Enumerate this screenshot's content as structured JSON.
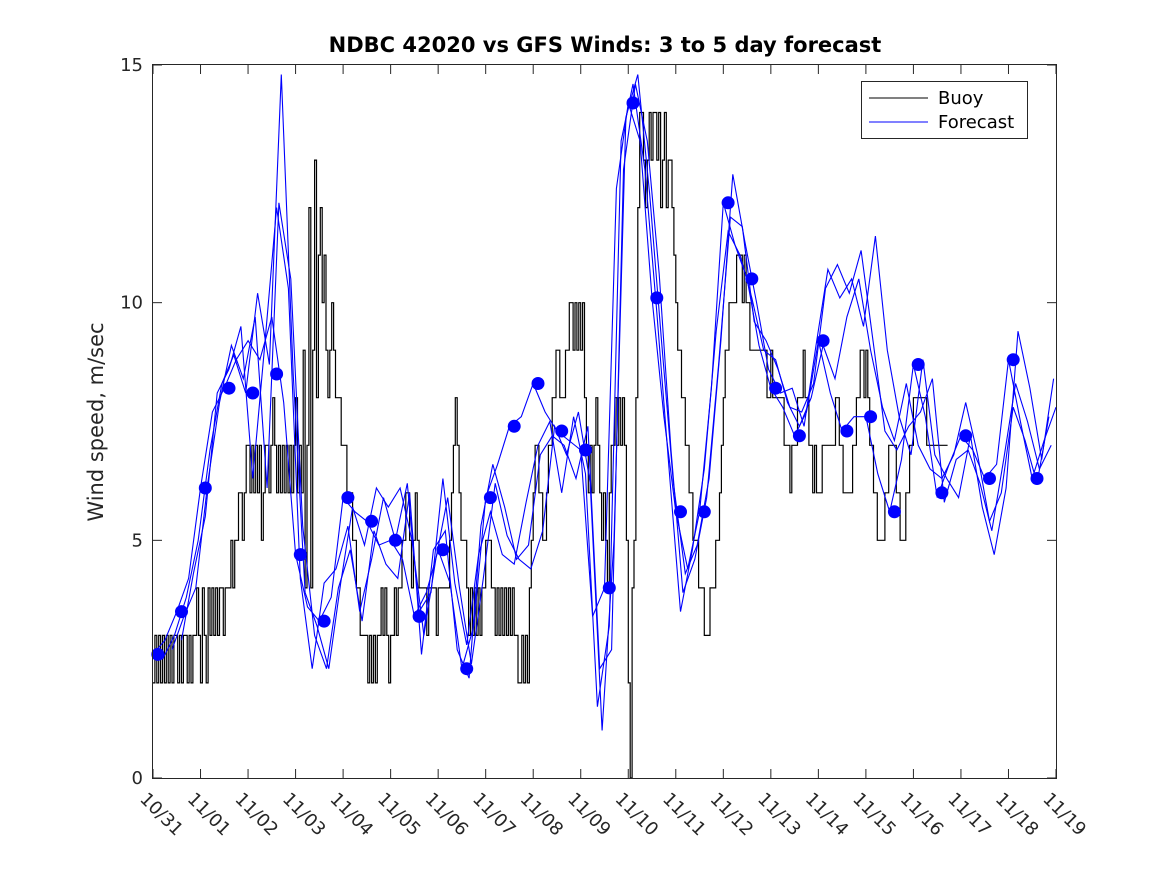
{
  "chart_data": {
    "type": "line",
    "title": "NDBC 42020 vs GFS Winds: 3 to 5 day forecast",
    "xlabel": "",
    "ylabel": "Wind speed, m/sec",
    "xlim": [
      0,
      19
    ],
    "ylim": [
      0,
      15
    ],
    "grid": false,
    "legend_position": "top-right",
    "x_tick_labels": [
      "10/31",
      "11/01",
      "11/02",
      "11/03",
      "11/04",
      "11/05",
      "11/06",
      "11/07",
      "11/08",
      "11/09",
      "11/10",
      "11/11",
      "11/12",
      "11/13",
      "11/14",
      "11/15",
      "11/16",
      "11/17",
      "11/18",
      "11/19"
    ],
    "y_ticks": [
      0,
      5,
      10,
      15
    ],
    "colors": {
      "buoy": "#000000",
      "forecast": "#0000ff",
      "markers": "#0000ff"
    },
    "series": [
      {
        "name": "Buoy",
        "x_start": 0,
        "x_step": 0.04,
        "values": [
          2,
          3,
          2,
          3,
          2,
          3,
          2,
          3,
          2,
          3,
          2,
          3,
          3,
          2,
          3,
          2,
          3,
          3,
          2,
          3,
          2,
          3,
          3,
          4,
          3,
          2,
          4,
          3,
          2,
          4,
          3,
          4,
          3,
          4,
          3,
          4,
          4,
          3,
          4,
          4,
          4,
          5,
          4,
          5,
          5,
          6,
          6,
          5,
          6,
          7,
          7,
          6,
          7,
          6,
          7,
          6,
          7,
          5,
          6,
          7,
          7,
          6,
          7,
          8,
          7,
          6,
          7,
          6,
          7,
          6,
          7,
          6,
          7,
          6,
          7,
          8,
          6,
          7,
          6,
          9,
          4,
          7,
          12,
          4,
          9,
          13,
          8,
          11,
          12,
          10,
          11,
          9,
          8,
          9,
          10,
          9,
          8,
          8,
          8,
          7,
          7,
          7,
          6,
          6,
          6,
          5,
          5,
          4,
          4,
          3,
          3,
          3,
          3,
          2,
          3,
          2,
          3,
          2,
          3,
          3,
          4,
          3,
          4,
          3,
          2,
          3,
          3,
          4,
          3,
          4,
          4,
          5,
          5,
          6,
          6,
          5,
          4,
          5,
          6,
          5,
          4,
          4,
          4,
          4,
          3,
          4,
          4,
          4,
          4,
          3,
          4,
          4,
          4,
          4,
          4,
          4,
          5,
          6,
          7,
          8,
          7,
          6,
          5,
          5,
          5,
          4,
          3,
          4,
          3,
          4,
          3,
          4,
          3,
          4,
          4,
          5,
          5,
          5,
          4,
          4,
          3,
          4,
          3,
          4,
          3,
          4,
          3,
          4,
          3,
          4,
          3,
          3,
          2,
          2,
          3,
          2,
          3,
          2,
          4,
          5,
          6,
          7,
          7,
          6,
          6,
          5,
          5,
          6,
          7,
          7,
          8,
          8,
          9,
          9,
          8,
          8,
          8,
          9,
          9,
          10,
          10,
          9,
          10,
          9,
          10,
          9,
          10,
          8,
          7,
          6,
          7,
          6,
          7,
          8,
          7,
          6,
          5,
          6,
          5,
          4,
          6,
          7,
          7,
          8,
          7,
          8,
          7,
          8,
          7,
          5,
          2,
          0,
          4,
          5,
          8,
          12,
          14,
          14,
          13,
          12,
          13,
          14,
          13,
          14,
          14,
          13,
          14,
          12,
          13,
          14,
          12,
          13,
          13,
          12,
          11,
          10,
          9,
          9,
          8,
          8,
          7,
          7,
          6,
          6,
          5,
          5,
          5,
          4,
          4,
          4,
          3,
          3,
          3,
          4,
          4,
          4,
          5,
          5,
          6,
          7,
          8,
          9,
          9,
          10,
          10,
          10,
          10,
          11,
          11,
          11,
          10,
          11,
          10,
          10,
          9,
          9,
          9,
          9,
          9,
          9,
          9,
          9,
          9,
          8,
          8,
          9,
          8,
          8,
          8,
          8,
          8,
          8,
          7,
          7,
          7,
          6,
          7,
          7,
          7,
          8,
          8,
          8,
          9,
          8,
          8,
          7,
          7,
          6,
          7,
          6,
          6,
          6,
          7,
          7,
          7,
          7,
          7,
          7,
          7,
          8,
          8,
          7,
          7,
          6,
          6,
          6,
          6,
          6,
          7,
          7,
          8,
          8,
          9,
          9,
          8,
          9,
          8,
          7,
          7,
          6,
          6,
          5,
          5,
          5,
          5,
          6,
          6,
          7,
          7,
          7,
          7,
          6,
          6,
          5,
          5,
          5,
          6,
          6,
          7,
          7,
          8,
          8,
          8,
          8,
          8,
          8,
          8,
          7,
          7,
          7,
          7,
          7,
          7,
          7,
          7,
          7,
          7,
          7
        ]
      },
      {
        "name": "Forecast",
        "runs": [
          {
            "x": [
              0.0,
              0.25,
              0.5,
              0.75,
              1.0,
              1.25,
              1.5,
              1.75,
              2.0,
              2.25,
              2.5,
              2.75,
              3.0,
              3.25,
              3.5,
              3.75,
              4.0,
              4.25,
              4.5,
              4.75,
              5.0,
              5.25,
              5.5,
              5.75,
              6.0,
              6.25,
              6.5,
              6.75,
              7.0,
              7.25,
              7.5,
              7.75,
              8.0,
              8.25,
              8.5,
              8.75,
              9.0,
              9.25,
              9.5,
              9.75,
              10.0,
              10.25,
              10.5,
              10.75,
              11.0,
              11.25,
              11.5,
              11.75,
              12.0,
              12.25,
              12.5,
              12.75,
              13.0,
              13.25,
              13.5,
              13.75,
              14.0,
              14.25,
              14.5,
              14.75,
              15.0,
              15.25,
              15.5,
              15.75,
              16.0,
              16.25,
              16.5,
              16.75,
              17.0,
              17.25,
              17.5,
              17.75,
              18.0,
              18.25,
              18.5,
              18.75,
              19.0
            ],
            "y": [
              2.6,
              2.9,
              3.5,
              4.2,
              6.1,
              7.7,
              8.2,
              8.8,
              9.2,
              8.8,
              9.7,
              7.9,
              4.7,
              3.6,
              3.3,
              3.8,
              5.9,
              5.6,
              5.4,
              4.9,
              5.0,
              4.6,
              3.4,
              3.9,
              4.8,
              4.1,
              2.3,
              3.2,
              5.9,
              6.6,
              7.4,
              7.6,
              8.3,
              7.7,
              7.3,
              7.1,
              6.9,
              3.4,
              4.0,
              12.4,
              14.2,
              13.4,
              10.1,
              7.6,
              5.6,
              4.4,
              5.6,
              8.2,
              12.1,
              11.2,
              10.5,
              9.1,
              8.2,
              7.8,
              7.2,
              7.7,
              9.2,
              8.1,
              7.3,
              7.6,
              7.6,
              6.4,
              5.6,
              6.7,
              8.7,
              7.6,
              5.9,
              6.6,
              7.2,
              6.9,
              6.3,
              6.6,
              8.8,
              7.5,
              6.3,
              7.1,
              7.8
            ]
          },
          {
            "x": [
              0.2,
              0.45,
              0.7,
              0.95,
              1.2,
              1.45,
              1.7,
              1.95,
              2.2,
              2.45,
              2.7,
              2.95,
              3.2,
              3.45,
              3.7,
              3.95,
              4.2,
              4.45,
              4.7,
              4.95,
              5.2,
              5.45,
              5.7,
              5.95,
              6.2,
              6.45,
              6.7,
              6.95,
              7.2,
              7.45,
              7.7,
              7.95,
              8.2,
              8.45,
              8.7,
              8.95,
              9.2,
              9.45,
              9.7,
              9.95,
              10.2,
              10.45,
              10.7,
              10.95,
              11.2,
              11.45,
              11.7,
              11.95,
              12.2,
              12.45,
              12.7,
              12.95,
              13.2,
              13.45,
              13.7,
              13.95,
              14.2,
              14.45,
              14.7,
              14.95,
              15.2,
              15.45,
              15.7,
              15.95,
              16.2,
              16.45,
              16.7,
              16.95,
              17.2,
              17.45,
              17.7,
              17.95,
              18.2,
              18.45,
              18.7,
              18.95
            ],
            "y": [
              2.5,
              3.0,
              3.8,
              5.0,
              6.9,
              8.3,
              8.9,
              8.1,
              10.2,
              8.7,
              14.8,
              8.5,
              3.9,
              3.2,
              2.3,
              4.1,
              5.7,
              4.9,
              6.1,
              5.7,
              6.1,
              5.0,
              3.0,
              4.6,
              5.9,
              4.0,
              2.4,
              4.2,
              6.2,
              5.1,
              4.6,
              4.4,
              5.2,
              7.4,
              6.8,
              7.7,
              6.2,
              1.0,
              5.0,
              13.9,
              14.8,
              12.3,
              9.2,
              6.2,
              4.3,
              4.9,
              6.3,
              9.2,
              12.7,
              11.3,
              10.0,
              8.6,
              8.1,
              8.2,
              7.4,
              9.1,
              10.7,
              10.1,
              10.5,
              9.5,
              11.4,
              9.0,
              7.6,
              6.8,
              8.8,
              6.8,
              6.3,
              5.9,
              7.2,
              5.7,
              4.7,
              6.1,
              9.4,
              8.2,
              6.7,
              8.4
            ]
          },
          {
            "x": [
              0.4,
              0.65,
              0.9,
              1.15,
              1.4,
              1.65,
              1.9,
              2.15,
              2.4,
              2.65,
              2.9,
              3.15,
              3.4,
              3.65,
              3.9,
              4.15,
              4.4,
              4.65,
              4.9,
              5.15,
              5.4,
              5.65,
              5.9,
              6.15,
              6.4,
              6.65,
              6.9,
              7.15,
              7.4,
              7.65,
              7.9,
              8.15,
              8.4,
              8.65,
              8.9,
              9.15,
              9.4,
              9.65,
              9.9,
              10.15,
              10.4,
              10.65,
              10.9,
              11.15,
              11.4,
              11.65,
              11.9,
              12.15,
              12.4,
              12.65,
              12.9,
              13.15,
              13.4,
              13.65,
              13.9,
              14.15,
              14.4,
              14.65,
              14.9,
              15.15,
              15.4,
              15.65,
              15.9,
              16.15,
              16.4,
              16.65,
              16.9,
              17.15,
              17.4,
              17.65,
              17.9,
              18.15,
              18.4,
              18.65,
              18.9
            ],
            "y": [
              2.7,
              3.4,
              4.0,
              6.2,
              7.9,
              9.1,
              8.4,
              9.7,
              6.1,
              12.1,
              10.5,
              5.3,
              3.0,
              2.3,
              4.0,
              4.8,
              3.3,
              5.2,
              4.5,
              4.2,
              6.0,
              2.6,
              4.8,
              5.2,
              2.7,
              2.1,
              5.3,
              6.6,
              5.7,
              4.6,
              4.9,
              6.8,
              7.2,
              7.0,
              6.3,
              7.4,
              2.3,
              2.7,
              12.8,
              14.6,
              13.4,
              10.6,
              6.9,
              3.9,
              4.6,
              5.9,
              8.7,
              11.8,
              11.6,
              9.6,
              9.2,
              8.6,
              7.8,
              7.7,
              8.3,
              10.3,
              10.8,
              10.2,
              11.1,
              9.2,
              7.3,
              6.9,
              7.4,
              7.7,
              8.4,
              5.8,
              6.7,
              6.9,
              6.2,
              5.2,
              6.7,
              8.3,
              7.5,
              6.5,
              7.0
            ]
          },
          {
            "x": [
              0.6,
              0.85,
              1.1,
              1.35,
              1.6,
              1.85,
              2.1,
              2.35,
              2.6,
              2.85,
              3.1,
              3.35,
              3.6,
              3.85,
              4.1,
              4.35,
              4.6,
              4.85,
              5.1,
              5.35,
              5.6,
              5.85,
              6.1,
              6.35,
              6.6,
              6.85,
              7.1,
              7.35,
              7.6,
              7.85,
              8.1,
              8.35,
              8.6,
              8.85,
              9.1,
              9.35,
              9.6,
              9.85,
              10.1,
              10.35,
              10.6,
              10.85,
              11.1,
              11.35,
              11.6,
              11.85,
              12.1,
              12.35,
              12.6,
              12.85,
              13.1,
              13.35,
              13.6,
              13.85,
              14.1,
              14.35,
              14.6,
              14.85,
              15.1,
              15.35,
              15.6,
              15.85,
              16.1,
              16.35,
              16.6,
              16.85,
              17.1,
              17.35,
              17.6,
              17.85,
              18.1,
              18.35,
              18.6,
              18.85
            ],
            "y": [
              2.9,
              4.3,
              5.5,
              8.1,
              8.6,
              9.5,
              6.3,
              9.1,
              12.0,
              10.3,
              4.2,
              2.3,
              4.1,
              4.4,
              5.3,
              3.5,
              4.6,
              5.9,
              5.0,
              6.2,
              3.5,
              3.9,
              6.3,
              4.1,
              2.8,
              4.7,
              5.6,
              4.7,
              4.5,
              5.8,
              7.0,
              7.5,
              6.0,
              7.6,
              6.4,
              1.5,
              3.2,
              13.4,
              14.6,
              12.8,
              9.8,
              6.6,
              3.5,
              4.8,
              6.5,
              9.4,
              11.5,
              11.0,
              10.1,
              9.0,
              8.8,
              7.9,
              7.4,
              8.0,
              9.1,
              8.4,
              9.7,
              10.5,
              9.0,
              7.8,
              7.1,
              8.3,
              7.0,
              6.5,
              6.3,
              6.8,
              7.9,
              6.8,
              5.4,
              6.0,
              7.8,
              7.1,
              6.2,
              7.6
            ]
          }
        ]
      },
      {
        "name": "Forecast markers",
        "x": [
          0.1,
          0.6,
          1.1,
          1.6,
          2.1,
          2.6,
          3.1,
          3.6,
          4.1,
          4.6,
          5.1,
          5.6,
          6.1,
          6.6,
          7.1,
          7.6,
          8.1,
          8.6,
          9.1,
          9.6,
          10.1,
          10.6,
          11.1,
          11.6,
          12.1,
          12.6,
          13.1,
          13.6,
          14.1,
          14.6,
          15.1,
          15.6,
          16.1,
          16.6,
          17.1,
          17.6,
          18.1,
          18.6
        ],
        "values": [
          2.6,
          3.5,
          6.1,
          8.2,
          8.1,
          8.5,
          4.7,
          3.3,
          5.9,
          5.4,
          5.0,
          3.4,
          4.8,
          2.3,
          5.9,
          7.4,
          8.3,
          7.3,
          6.9,
          4.0,
          14.2,
          10.1,
          5.6,
          5.6,
          12.1,
          10.5,
          8.2,
          7.2,
          9.2,
          7.3,
          7.6,
          5.6,
          8.7,
          6.0,
          7.2,
          6.3,
          8.8,
          6.3
        ]
      }
    ]
  }
}
